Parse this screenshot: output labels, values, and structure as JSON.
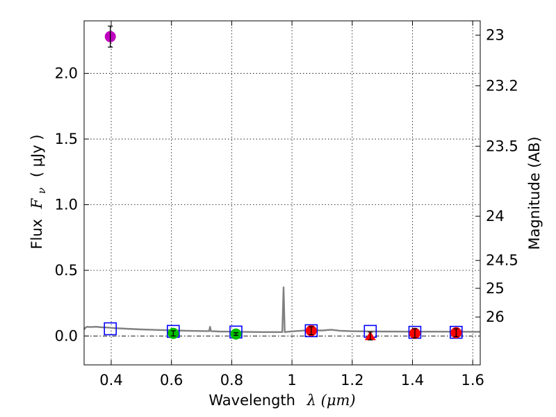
{
  "chart_data": {
    "type": "scatter",
    "xlabel": "Wavelength",
    "xlabel_symbol": "λ (μm)",
    "ylabel": "Flux",
    "ylabel_symbol": "F",
    "ylabel_sub": "ν",
    "ylabel_unit": "( μJy )",
    "y2label": "Magnitude (AB)",
    "xlim": [
      0.31,
      1.625
    ],
    "ylim": [
      -0.22,
      2.4
    ],
    "grid": true,
    "x_ticks": [
      {
        "value": 0.4,
        "label": "0.4"
      },
      {
        "value": 0.6,
        "label": "0.6"
      },
      {
        "value": 0.8,
        "label": "0.8"
      },
      {
        "value": 1.0,
        "label": "1"
      },
      {
        "value": 1.2,
        "label": "1.2"
      },
      {
        "value": 1.4,
        "label": "1.4"
      },
      {
        "value": 1.6,
        "label": "1.6"
      }
    ],
    "y_ticks": [
      {
        "value": 0.0,
        "label": "0.0"
      },
      {
        "value": 0.5,
        "label": "0.5"
      },
      {
        "value": 1.0,
        "label": "1.0"
      },
      {
        "value": 1.5,
        "label": "1.5"
      },
      {
        "value": 2.0,
        "label": "2.0"
      }
    ],
    "y2_ticks": [
      {
        "value": 23,
        "label": "23"
      },
      {
        "value": 23.2,
        "label": "23.2"
      },
      {
        "value": 23.5,
        "label": "23.5"
      },
      {
        "value": 24,
        "label": "24"
      },
      {
        "value": 24.5,
        "label": "24.5"
      },
      {
        "value": 25,
        "label": "25"
      },
      {
        "value": 26,
        "label": "26"
      }
    ],
    "zero_line": 0.0,
    "observed": [
      {
        "x": 0.397,
        "y": 2.28,
        "err": 0.08,
        "color": "#bf00bf",
        "marker": "circle"
      },
      {
        "x": 0.606,
        "y": 0.02,
        "err": 0.02,
        "color": "#00bf00",
        "marker": "circle"
      },
      {
        "x": 0.814,
        "y": 0.015,
        "err": 0.01,
        "color": "#00bf00",
        "marker": "circle"
      },
      {
        "x": 1.064,
        "y": 0.04,
        "err": 0.03,
        "color": "#ff0000",
        "marker": "circle"
      },
      {
        "x": 1.26,
        "y": 0.0,
        "err": 0.03,
        "color": "#ff0000",
        "marker": "triangle"
      },
      {
        "x": 1.408,
        "y": 0.02,
        "err": 0.035,
        "color": "#ff0000",
        "marker": "circle"
      },
      {
        "x": 1.545,
        "y": 0.025,
        "err": 0.03,
        "color": "#ff0000",
        "marker": "circle"
      }
    ],
    "model_photometry": [
      {
        "x": 0.397,
        "y": 0.055
      },
      {
        "x": 0.606,
        "y": 0.035
      },
      {
        "x": 0.814,
        "y": 0.03
      },
      {
        "x": 1.064,
        "y": 0.04
      },
      {
        "x": 1.26,
        "y": 0.035
      },
      {
        "x": 1.408,
        "y": 0.028
      },
      {
        "x": 1.545,
        "y": 0.028
      }
    ],
    "model_spectrum": {
      "color": "#808080",
      "points": [
        [
          0.31,
          0.05
        ],
        [
          0.315,
          0.065
        ],
        [
          0.32,
          0.07
        ],
        [
          0.33,
          0.068
        ],
        [
          0.35,
          0.07
        ],
        [
          0.37,
          0.066
        ],
        [
          0.39,
          0.064
        ],
        [
          0.41,
          0.06
        ],
        [
          0.45,
          0.055
        ],
        [
          0.5,
          0.05
        ],
        [
          0.55,
          0.046
        ],
        [
          0.6,
          0.043
        ],
        [
          0.65,
          0.04
        ],
        [
          0.7,
          0.038
        ],
        [
          0.725,
          0.037
        ],
        [
          0.728,
          0.07
        ],
        [
          0.731,
          0.037
        ],
        [
          0.76,
          0.034
        ],
        [
          0.8,
          0.033
        ],
        [
          0.85,
          0.031
        ],
        [
          0.9,
          0.03
        ],
        [
          0.95,
          0.03
        ],
        [
          0.968,
          0.03
        ],
        [
          0.972,
          0.37
        ],
        [
          0.976,
          0.03
        ],
        [
          1.0,
          0.035
        ],
        [
          1.05,
          0.043
        ],
        [
          1.1,
          0.042
        ],
        [
          1.13,
          0.048
        ],
        [
          1.16,
          0.04
        ],
        [
          1.2,
          0.036
        ],
        [
          1.25,
          0.035
        ],
        [
          1.3,
          0.034
        ],
        [
          1.4,
          0.033
        ],
        [
          1.5,
          0.033
        ],
        [
          1.625,
          0.032
        ]
      ]
    }
  }
}
